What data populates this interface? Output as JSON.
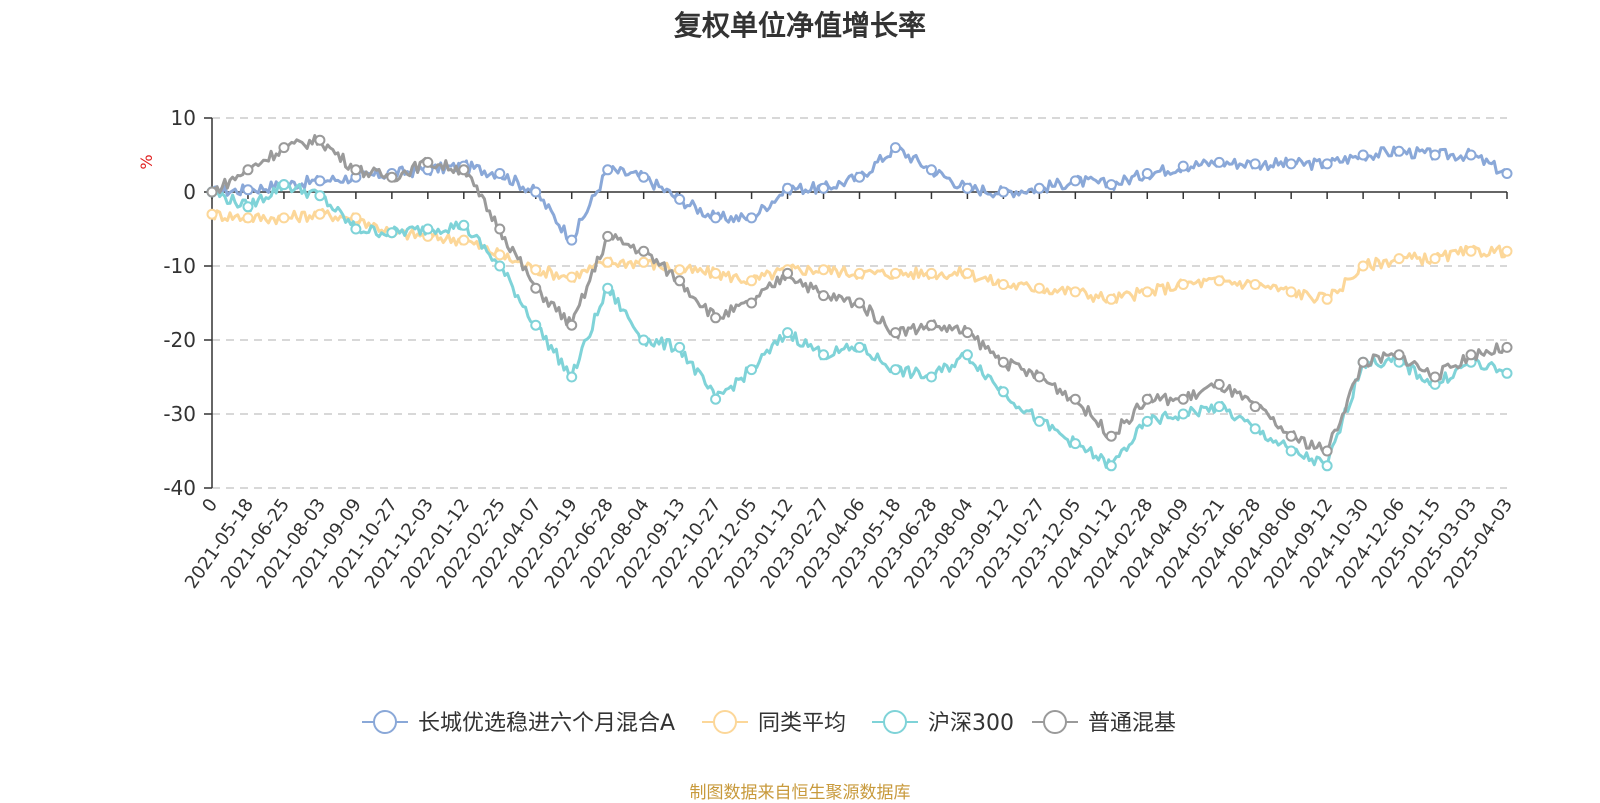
{
  "chart_data": {
    "type": "line",
    "title": "复权单位净值增长率",
    "ylabel": "%",
    "ylim": [
      -40,
      10
    ],
    "yticks": [
      10,
      0,
      -10,
      -20,
      -30,
      -40
    ],
    "x": [
      "0",
      "2021-05-18",
      "2021-06-25",
      "2021-08-03",
      "2021-09-09",
      "2021-10-27",
      "2021-12-03",
      "2022-01-12",
      "2022-02-25",
      "2022-04-07",
      "2022-05-19",
      "2022-06-28",
      "2022-08-04",
      "2022-09-13",
      "2022-10-27",
      "2022-12-05",
      "2023-01-12",
      "2023-02-27",
      "2023-04-06",
      "2023-05-18",
      "2023-06-28",
      "2023-08-04",
      "2023-09-12",
      "2023-10-27",
      "2023-12-05",
      "2024-01-12",
      "2024-02-28",
      "2024-04-09",
      "2024-05-21",
      "2024-06-28",
      "2024-08-06",
      "2024-09-12",
      "2024-10-30",
      "2024-12-06",
      "2025-01-15",
      "2025-03-03",
      "2025-04-03"
    ],
    "series": [
      {
        "name": "长城优选稳进六个月混合A",
        "color": "#8aa8d8",
        "values": [
          0,
          0.3,
          1.0,
          1.5,
          2.0,
          2.5,
          3.0,
          3.5,
          2.5,
          0,
          -6.5,
          3.0,
          2.0,
          -1.0,
          -3.5,
          -3.5,
          0.5,
          0.5,
          2.0,
          6.0,
          3.0,
          0.5,
          0,
          0.5,
          1.5,
          1.0,
          2.5,
          3.5,
          4.0,
          3.8,
          3.8,
          3.8,
          5.0,
          5.5,
          5.0,
          5.0,
          2.5
        ]
      },
      {
        "name": "同类平均",
        "color": "#fcd799",
        "values": [
          -3,
          -3.5,
          -3.5,
          -3.0,
          -3.5,
          -5.5,
          -6.0,
          -6.5,
          -8.5,
          -10.5,
          -11.5,
          -9.5,
          -9.5,
          -10.5,
          -11.0,
          -12.0,
          -10.5,
          -10.5,
          -11.0,
          -11.0,
          -11.0,
          -11.0,
          -12.5,
          -13.0,
          -13.5,
          -14.5,
          -13.5,
          -12.5,
          -12.0,
          -12.5,
          -13.5,
          -14.5,
          -10.0,
          -9.0,
          -9.0,
          -8.0,
          -8.0
        ]
      },
      {
        "name": "沪深300",
        "color": "#7fd3d8",
        "values": [
          0,
          -2.0,
          1.0,
          -0.5,
          -5.0,
          -5.5,
          -5.0,
          -4.5,
          -10.0,
          -18.0,
          -25.0,
          -13.0,
          -20.0,
          -21.0,
          -28.0,
          -24.0,
          -19.0,
          -22.0,
          -21.0,
          -24.0,
          -25.0,
          -22.0,
          -27.0,
          -31.0,
          -34.0,
          -37.0,
          -31.0,
          -30.0,
          -29.0,
          -32.0,
          -35.0,
          -37.0,
          -23.0,
          -23.0,
          -26.0,
          -23.0,
          -24.5
        ]
      },
      {
        "name": "普通混基",
        "color": "#9a9a9a",
        "values": [
          0,
          3.0,
          6.0,
          7.0,
          3.0,
          2.0,
          4.0,
          3.0,
          -5.0,
          -13.0,
          -18.0,
          -6.0,
          -8.0,
          -12.0,
          -17.0,
          -15.0,
          -11.0,
          -14.0,
          -15.0,
          -19.0,
          -18.0,
          -19.0,
          -23.0,
          -25.0,
          -28.0,
          -33.0,
          -28.0,
          -28.0,
          -26.0,
          -29.0,
          -33.0,
          -35.0,
          -23.0,
          -22.0,
          -25.0,
          -22.0,
          -21.0
        ]
      }
    ],
    "legend_position": "bottom-center",
    "grid": true
  },
  "footer": "制图数据来自恒生聚源数据库"
}
